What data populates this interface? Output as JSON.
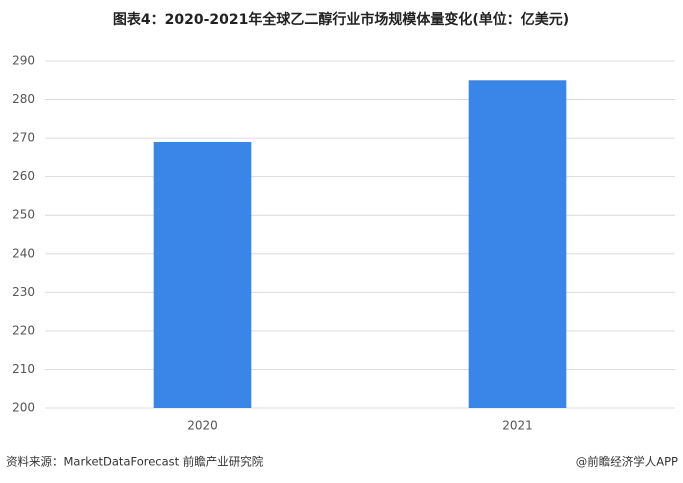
{
  "chart_data": {
    "type": "bar",
    "title": "图表4：2020-2021年全球乙二醇行业市场规模体量变化(单位：亿美元)",
    "categories": [
      "2020",
      "2021"
    ],
    "values": [
      269,
      285
    ],
    "color": "#3a86e8",
    "ylim": [
      200,
      290
    ],
    "yticks": [
      200,
      210,
      220,
      230,
      240,
      250,
      260,
      270,
      280,
      290
    ],
    "grid": true
  },
  "source": "资料来源：MarketDataForecast 前瞻产业研究院",
  "footer": "@前瞻经济学人APP"
}
